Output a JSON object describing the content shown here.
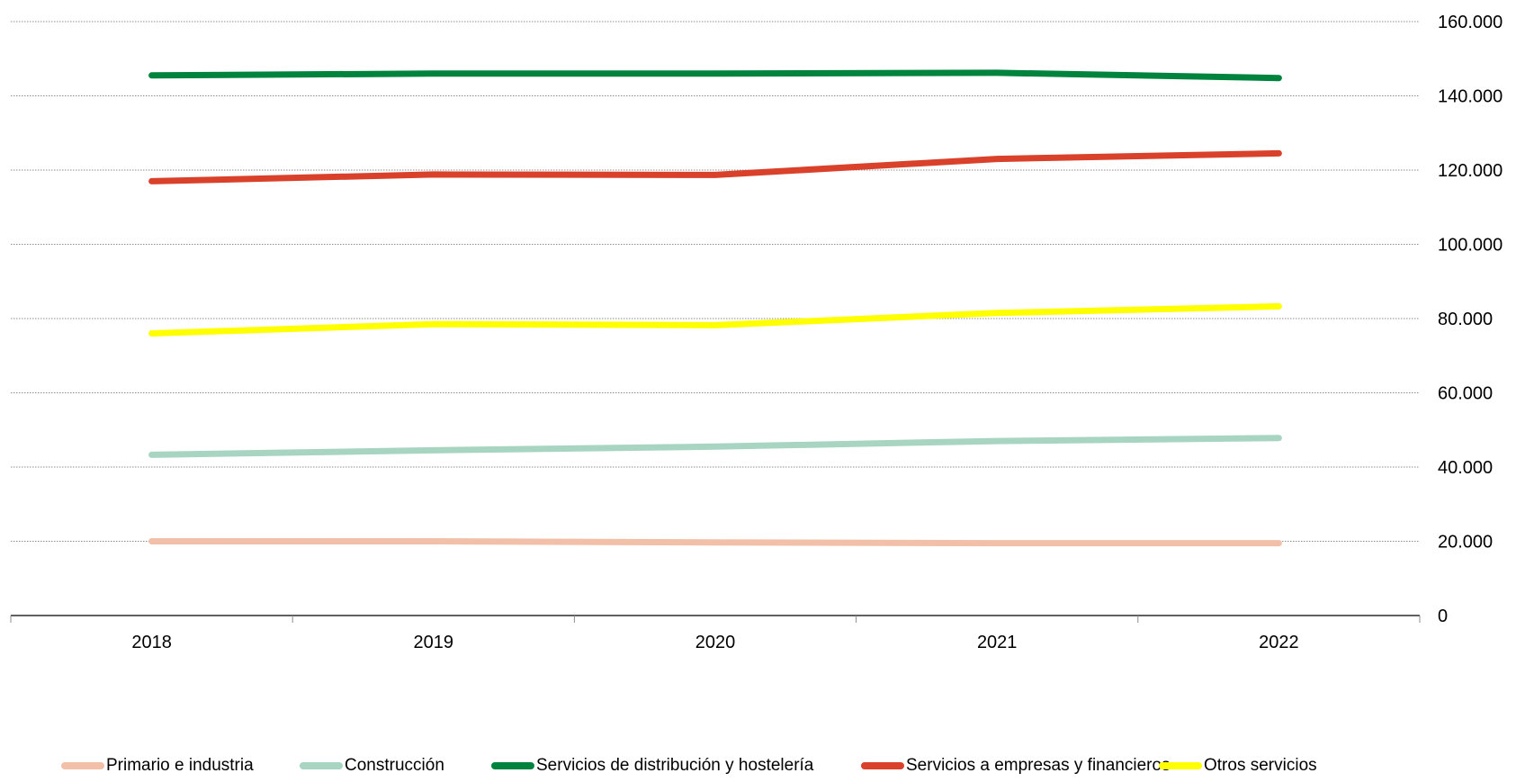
{
  "chart_data": {
    "type": "line",
    "title": "",
    "xlabel": "",
    "ylabel": "",
    "categories": [
      "2018",
      "2019",
      "2020",
      "2021",
      "2022"
    ],
    "ylim": [
      0,
      160000
    ],
    "yticks": [
      0,
      20000,
      40000,
      60000,
      80000,
      100000,
      120000,
      140000,
      160000
    ],
    "ytick_labels": [
      "0",
      "20.000",
      "40.000",
      "60.000",
      "80.000",
      "100.000",
      "120.000",
      "140.000",
      "160.000"
    ],
    "y_axis_side": "right",
    "grid": "horizontal-dotted",
    "legend_position": "bottom",
    "series": [
      {
        "name": "Primario e industria",
        "color": "#f2c0a8",
        "values": [
          20000,
          20000,
          19700,
          19500,
          19500
        ]
      },
      {
        "name": "Construcción",
        "color": "#a8d5c2",
        "values": [
          43300,
          44500,
          45500,
          47000,
          47800
        ]
      },
      {
        "name": "Servicios de distribución y hostelería",
        "color": "#00843d",
        "values": [
          145500,
          146000,
          146000,
          146200,
          144800
        ]
      },
      {
        "name": "Servicios a empresas y financieros",
        "color": "#d9412b",
        "values": [
          117000,
          118800,
          118700,
          123000,
          124500
        ]
      },
      {
        "name": "Otros servicios",
        "color": "#ffff00",
        "values": [
          76000,
          78500,
          78200,
          81500,
          83300
        ]
      }
    ]
  }
}
